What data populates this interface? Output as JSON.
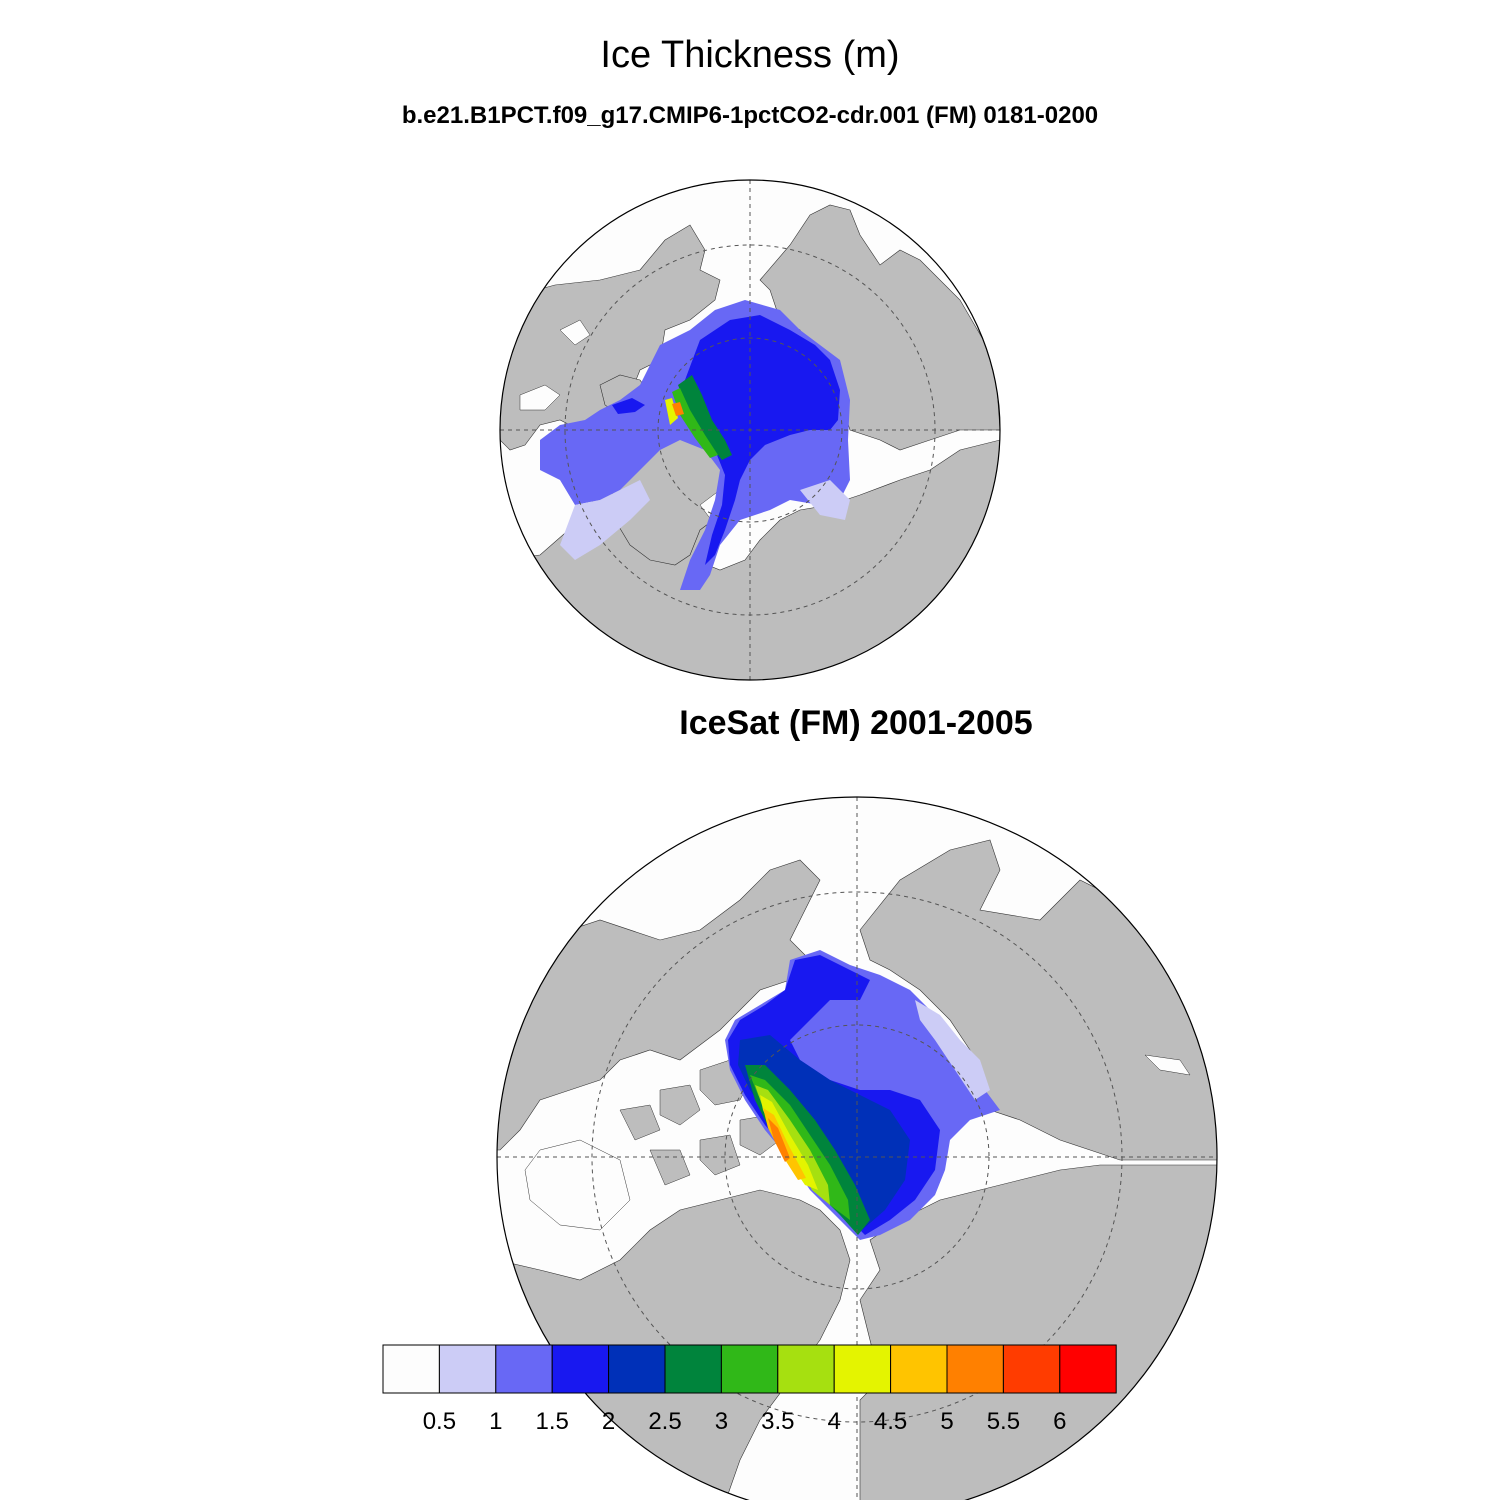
{
  "figure": {
    "title": "Ice Thickness (m)",
    "subtitle": "b.e21.B1PCT.f09_g17.CMIP6-1pctCO2-cdr.001 (FM) 0181-0200",
    "panel2_title": "IceSat (FM) 2001-2005"
  },
  "colors": {
    "land": "#bdbdbd",
    "ocean": "#fdfdfd",
    "levels": [
      "#fdfdfd",
      "#ccccf6",
      "#6868f5",
      "#1818f0",
      "#0030b8",
      "#00843c",
      "#30b818",
      "#a6e010",
      "#e4f400",
      "#ffc400",
      "#ff8000",
      "#ff3c00",
      "#ff0000"
    ]
  },
  "chart_data": {
    "type": "heatmap",
    "projection": "north polar stereographic",
    "panels": [
      {
        "name": "b.e21.B1PCT.f09_g17.CMIP6-1pctCO2-cdr.001 (FM) 0181-0200"
      },
      {
        "name": "IceSat (FM) 2001-2005"
      }
    ],
    "colorbar": {
      "levels": [
        "0.5",
        "1",
        "1.5",
        "2",
        "2.5",
        "3",
        "3.5",
        "4",
        "4.5",
        "5",
        "5.5",
        "6"
      ],
      "orientation": "horizontal"
    }
  }
}
